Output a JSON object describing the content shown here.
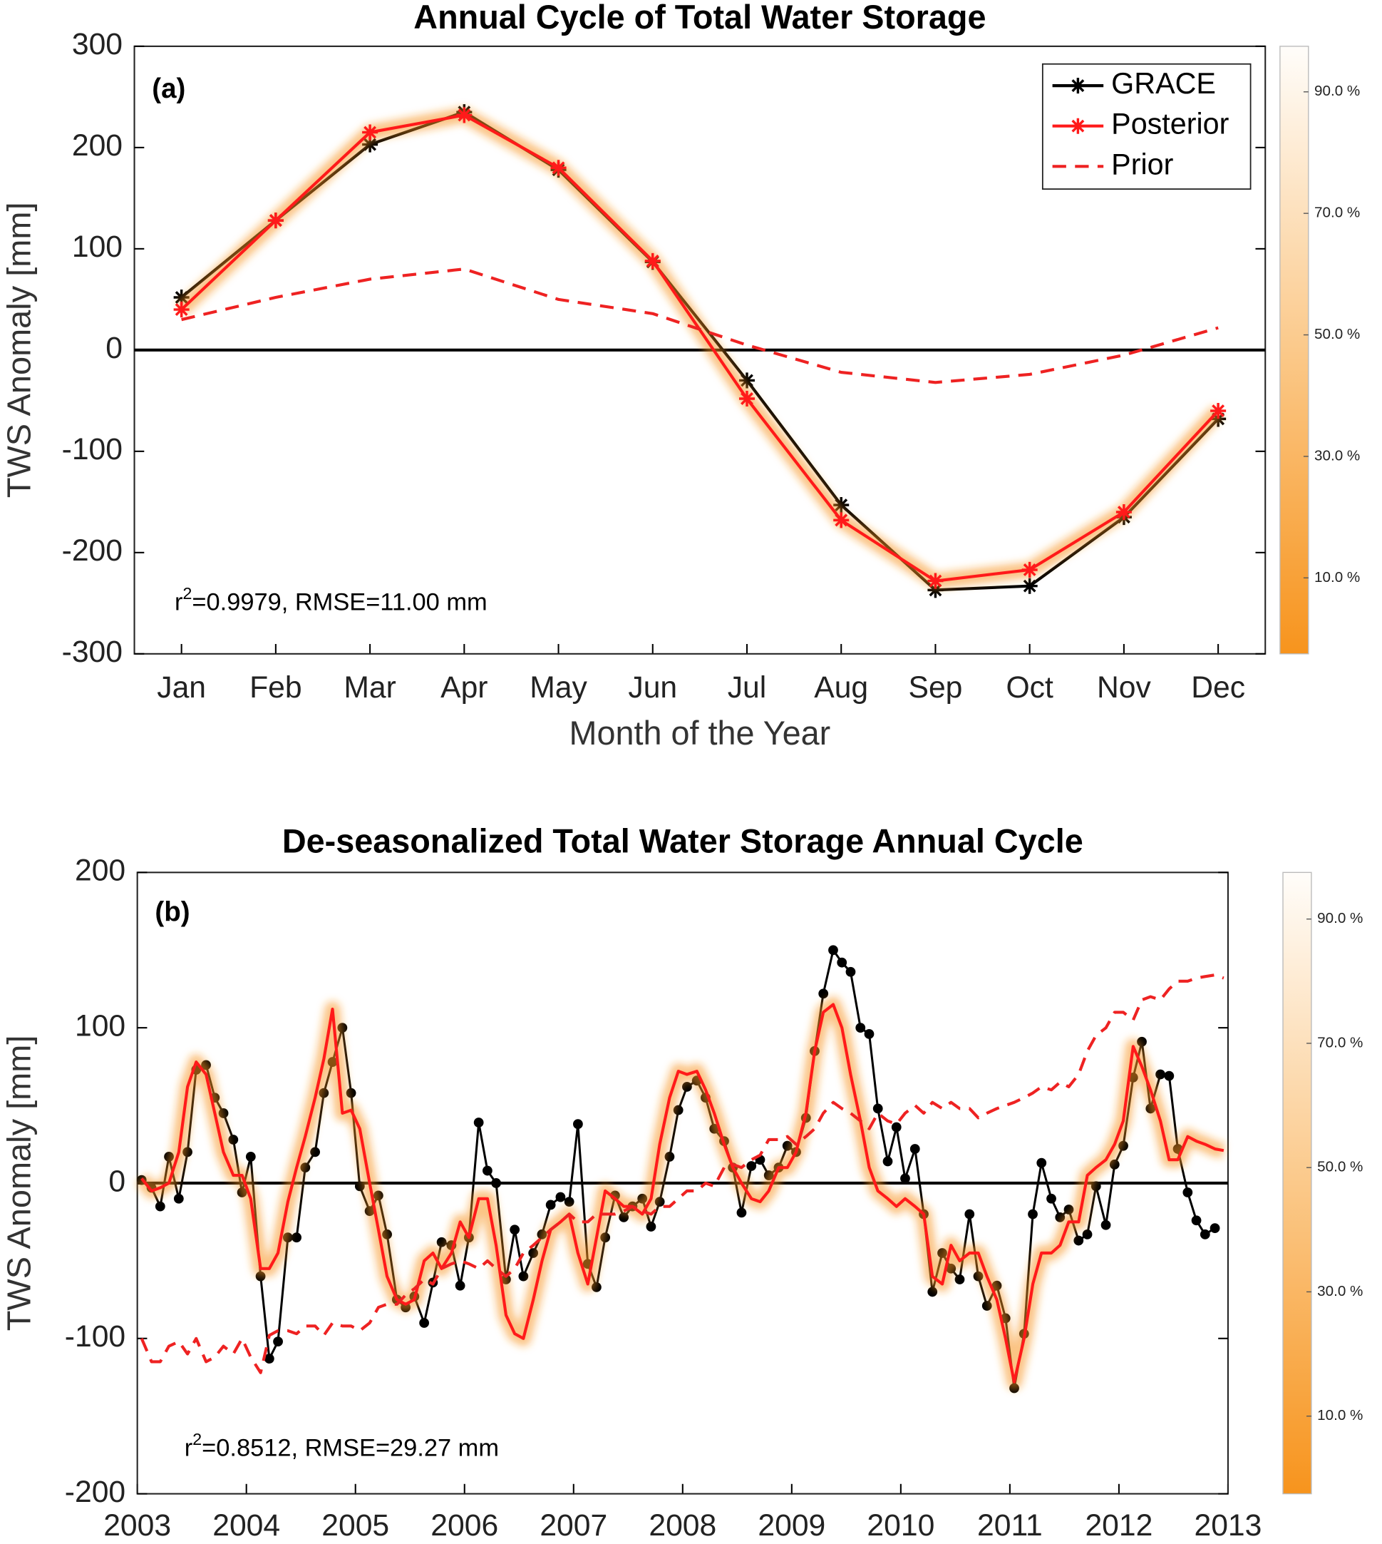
{
  "chart_data": [
    {
      "type": "line",
      "title": "Annual Cycle of Total Water Storage",
      "tag": "(a)",
      "xlabel": "Month of the Year",
      "ylabel": "TWS Anomaly [mm]",
      "stats": [
        "r",
        "2",
        "=0.9979, RMSE=11.00 mm"
      ],
      "categories": [
        "Jan",
        "Feb",
        "Mar",
        "Apr",
        "May",
        "Jun",
        "Jul",
        "Aug",
        "Sep",
        "Oct",
        "Nov",
        "Dec"
      ],
      "series": [
        {
          "name": "GRACE",
          "color": "#000000",
          "linestyle": "solid",
          "marker": "asterisk",
          "values": [
            52,
            128,
            203,
            235,
            178,
            87,
            -30,
            -153,
            -237,
            -233,
            -165,
            -68
          ]
        },
        {
          "name": "Posterior",
          "color": "#ff1a1a",
          "linestyle": "solid",
          "marker": "asterisk",
          "band": true,
          "values": [
            40,
            128,
            215,
            232,
            180,
            88,
            -48,
            -168,
            -228,
            -217,
            -160,
            -60
          ]
        },
        {
          "name": "Prior",
          "color": "#ee2222",
          "linestyle": "dashed",
          "marker": null,
          "values": [
            30,
            52,
            70,
            80,
            50,
            36,
            5,
            -22,
            -32,
            -24,
            -5,
            22
          ]
        }
      ],
      "ylim": [
        -300,
        300
      ],
      "yticks": [
        -300,
        -200,
        -100,
        0,
        100,
        200,
        300
      ],
      "zero_line": true,
      "legend": "upper right",
      "colorbar": {
        "clim": [
          -2.5,
          97.5
        ],
        "ticks": [
          {
            "value": 10,
            "label": "10.0 %"
          },
          {
            "value": 30,
            "label": "30.0 %"
          },
          {
            "value": 50,
            "label": "50.0 %"
          },
          {
            "value": 70,
            "label": "70.0 %"
          },
          {
            "value": 90,
            "label": "90.0 %"
          }
        ]
      }
    },
    {
      "type": "line",
      "title": "De-seasonalized Total Water Storage Annual Cycle",
      "tag": "(b)",
      "ylabel": "TWS Anomaly [mm]",
      "stats": [
        "r",
        "2",
        "=0.8512, RMSE=29.27 mm"
      ],
      "x": [
        2003.04,
        2003.13,
        2003.21,
        2003.29,
        2003.38,
        2003.46,
        2003.54,
        2003.63,
        2003.71,
        2003.79,
        2003.88,
        2003.96,
        2004.04,
        2004.13,
        2004.21,
        2004.29,
        2004.38,
        2004.46,
        2004.54,
        2004.63,
        2004.71,
        2004.79,
        2004.88,
        2004.96,
        2005.04,
        2005.13,
        2005.21,
        2005.29,
        2005.38,
        2005.46,
        2005.54,
        2005.63,
        2005.71,
        2005.79,
        2005.88,
        2005.96,
        2006.04,
        2006.13,
        2006.21,
        2006.29,
        2006.38,
        2006.46,
        2006.54,
        2006.63,
        2006.71,
        2006.79,
        2006.88,
        2006.96,
        2007.04,
        2007.13,
        2007.21,
        2007.29,
        2007.38,
        2007.46,
        2007.54,
        2007.63,
        2007.71,
        2007.79,
        2007.88,
        2007.96,
        2008.04,
        2008.13,
        2008.21,
        2008.29,
        2008.38,
        2008.46,
        2008.54,
        2008.63,
        2008.71,
        2008.79,
        2008.88,
        2008.96,
        2009.04,
        2009.13,
        2009.21,
        2009.29,
        2009.38,
        2009.46,
        2009.54,
        2009.63,
        2009.71,
        2009.79,
        2009.88,
        2009.96,
        2010.04,
        2010.13,
        2010.21,
        2010.29,
        2010.38,
        2010.46,
        2010.54,
        2010.63,
        2010.71,
        2010.79,
        2010.88,
        2010.96,
        2011.04,
        2011.13,
        2011.21,
        2011.29,
        2011.38,
        2011.46,
        2011.54,
        2011.63,
        2011.71,
        2011.79,
        2011.88,
        2011.96,
        2012.04,
        2012.13,
        2012.21,
        2012.29,
        2012.38,
        2012.46,
        2012.54,
        2012.63,
        2012.71,
        2012.79,
        2012.88,
        2012.96
      ],
      "series": [
        {
          "color": "#000000",
          "linestyle": "solid",
          "marker": "dot",
          "values": [
            2,
            -3,
            -15,
            17,
            -10,
            20,
            73,
            76,
            55,
            45,
            28,
            -6,
            17,
            -60,
            -113,
            -102,
            -35,
            -35,
            10,
            20,
            58,
            78,
            100,
            58,
            -2,
            -18,
            -8,
            -33,
            -75,
            -80,
            -73,
            -90,
            -64,
            -38,
            -40,
            -66,
            -35,
            39,
            8,
            0,
            -62,
            -30,
            -60,
            -45,
            -33,
            -14,
            -9,
            -12,
            38,
            -52,
            -67,
            -35,
            -8,
            -22,
            -15,
            -10,
            -28,
            -12,
            17,
            47,
            62,
            66,
            55,
            35,
            27,
            10,
            -19,
            11,
            15,
            5,
            10,
            24,
            20,
            42,
            85,
            122,
            150,
            142,
            136,
            100,
            96,
            48,
            14,
            36,
            3,
            22,
            -20,
            -70,
            -45,
            -55,
            -62,
            -20,
            -60,
            -79,
            -66,
            -87,
            -132,
            -97,
            -20,
            13,
            -10,
            -22,
            -17,
            -37,
            -33,
            -2,
            -27,
            12,
            24,
            68,
            91,
            48,
            70,
            69,
            22,
            -6,
            -24,
            -33,
            -29,
            null
          ]
        },
        {
          "color": "#ff1a1a",
          "linestyle": "solid",
          "marker": null,
          "band": true,
          "values": [
            3,
            -5,
            -3,
            0,
            20,
            62,
            78,
            70,
            45,
            20,
            5,
            5,
            -10,
            -55,
            -55,
            -45,
            -12,
            10,
            30,
            55,
            80,
            112,
            45,
            47,
            35,
            0,
            -30,
            -60,
            -75,
            -78,
            -75,
            -50,
            -45,
            -55,
            -45,
            -25,
            -35,
            -10,
            -10,
            -40,
            -85,
            -97,
            -100,
            -75,
            -50,
            -30,
            -25,
            -20,
            -45,
            -65,
            -35,
            -5,
            -10,
            -15,
            -15,
            -20,
            -10,
            25,
            55,
            72,
            70,
            72,
            60,
            45,
            25,
            10,
            0,
            -10,
            -12,
            -5,
            10,
            10,
            20,
            45,
            85,
            110,
            115,
            100,
            70,
            40,
            10,
            -5,
            -10,
            -15,
            -10,
            -15,
            -20,
            -60,
            -65,
            -40,
            -50,
            -45,
            -45,
            -60,
            -75,
            -100,
            -128,
            -100,
            -65,
            -45,
            -45,
            -40,
            -25,
            -25,
            5,
            10,
            15,
            25,
            40,
            88,
            75,
            60,
            40,
            15,
            15,
            30,
            27,
            25,
            22,
            21
          ]
        },
        {
          "color": "#ee2222",
          "linestyle": "dashed",
          "marker": null,
          "values": [
            -100,
            -115,
            -115,
            -105,
            -102,
            -110,
            -100,
            -115,
            -112,
            -105,
            -110,
            -100,
            -112,
            -122,
            -98,
            -95,
            -95,
            -97,
            -92,
            -92,
            -98,
            -90,
            -92,
            -92,
            -95,
            -90,
            -80,
            -78,
            -78,
            -72,
            -68,
            -62,
            -65,
            -55,
            -52,
            -50,
            -52,
            -55,
            -50,
            -55,
            -60,
            -55,
            -45,
            -40,
            -35,
            -30,
            -25,
            -20,
            -25,
            -25,
            -20,
            -20,
            -20,
            -18,
            -15,
            -18,
            -20,
            -15,
            -15,
            -10,
            -5,
            -5,
            0,
            -2,
            10,
            12,
            10,
            15,
            18,
            28,
            28,
            30,
            25,
            30,
            35,
            45,
            52,
            48,
            45,
            40,
            35,
            45,
            40,
            38,
            45,
            50,
            45,
            52,
            48,
            52,
            48,
            48,
            42,
            45,
            48,
            50,
            52,
            55,
            58,
            62,
            60,
            65,
            62,
            70,
            85,
            95,
            100,
            110,
            110,
            105,
            118,
            120,
            118,
            125,
            130,
            130,
            132,
            133,
            134,
            132
          ]
        }
      ],
      "xlim": [
        2003,
        2013
      ],
      "xticks": [
        2003,
        2004,
        2005,
        2006,
        2007,
        2008,
        2009,
        2010,
        2011,
        2012,
        2013
      ],
      "ylim": [
        -200,
        200
      ],
      "yticks": [
        -200,
        -100,
        0,
        100,
        200
      ],
      "zero_line": true,
      "colorbar": {
        "clim": [
          -2.5,
          97.5
        ],
        "ticks": [
          {
            "value": 10,
            "label": "10.0 %"
          },
          {
            "value": 30,
            "label": "30.0 %"
          },
          {
            "value": 50,
            "label": "50.0 %"
          },
          {
            "value": 70,
            "label": "70.0 %"
          },
          {
            "value": 90,
            "label": "90.0 %"
          }
        ]
      }
    }
  ]
}
